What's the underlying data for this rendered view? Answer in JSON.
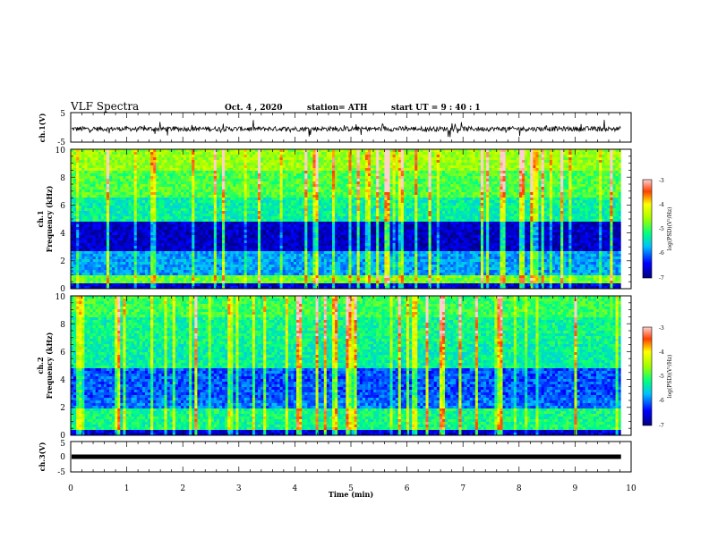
{
  "header": {
    "title": "VLF Spectra",
    "date": "Oct. 4 , 2020",
    "station": "station= ATH",
    "start": "start UT = 9 : 40 : 1"
  },
  "chart_data": [
    {
      "type": "line",
      "name": "ch1-voltage",
      "ylabel": "ch.1(V)",
      "xlim": [
        0,
        10
      ],
      "ylim": [
        -5,
        5
      ],
      "yticks": [
        "5",
        "-5"
      ],
      "baseline": -0.5,
      "x_end": 9.82
    },
    {
      "type": "heatmap",
      "name": "ch1-spectrogram",
      "ylabel": "ch.1\nFrequency (kHz)",
      "ylabel_lines": [
        "ch.1",
        "Frequency (kHz)"
      ],
      "xlim": [
        0,
        10
      ],
      "ylim": [
        0,
        10
      ],
      "yticks": [
        "0",
        "2",
        "4",
        "6",
        "8",
        "10"
      ],
      "x_end": 9.82,
      "colorbar": {
        "label": "log(PSD)(V²/Hz)",
        "range": [
          -7,
          -3
        ],
        "ticks": [
          "-3",
          "-4",
          "-5",
          "-6",
          "-7"
        ]
      }
    },
    {
      "type": "heatmap",
      "name": "ch2-spectrogram",
      "ylabel": "ch.2\nFrequency (kHz)",
      "ylabel_lines": [
        "ch.2",
        "Frequency (kHz)"
      ],
      "xlim": [
        0,
        10
      ],
      "ylim": [
        0,
        10
      ],
      "yticks": [
        "0",
        "2",
        "4",
        "6",
        "8",
        "10"
      ],
      "x_end": 9.82,
      "colorbar": {
        "label": "log(PSD)(V²/Hz)",
        "range": [
          -7,
          -3
        ],
        "ticks": [
          "-3",
          "-4",
          "-5",
          "-6",
          "-7"
        ]
      }
    },
    {
      "type": "line",
      "name": "ch3-voltage",
      "ylabel": "ch.3(V)",
      "xlim": [
        0,
        10
      ],
      "ylim": [
        -5,
        5
      ],
      "yticks": [
        "5",
        "0",
        "-5"
      ],
      "baseline": 0,
      "x_end": 9.82
    }
  ],
  "xaxis": {
    "label": "Time (min)",
    "ticks": [
      "0",
      "1",
      "2",
      "3",
      "4",
      "5",
      "6",
      "7",
      "8",
      "9",
      "10"
    ]
  }
}
